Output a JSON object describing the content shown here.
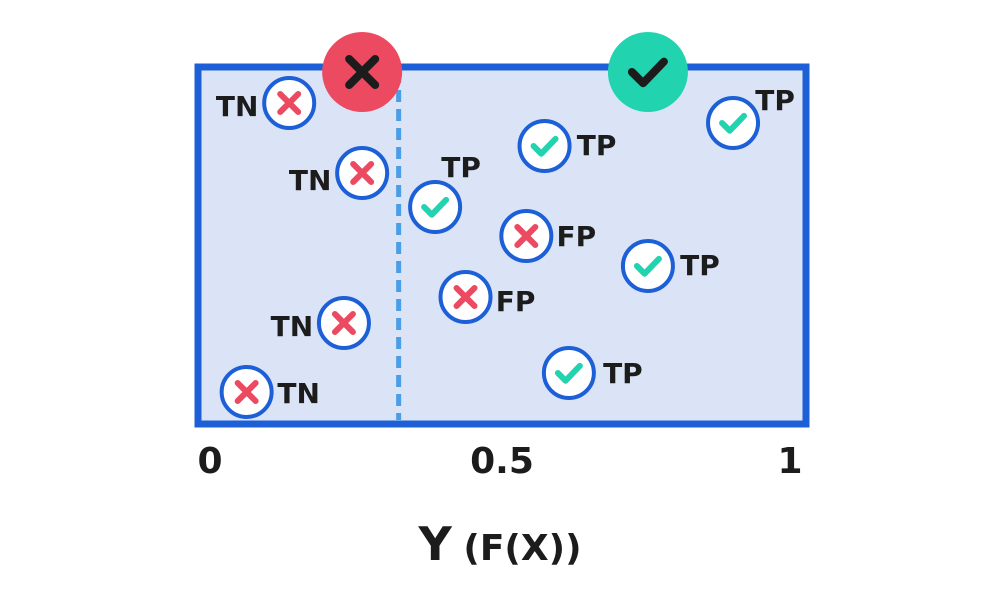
{
  "chart_data": {
    "type": "scatter",
    "threshold": 0.33,
    "xlim": [
      0,
      1
    ],
    "xlabel": "Y (F(X))",
    "xlabel_main": "Y",
    "xlabel_inner": "(F(X))",
    "ticks": [
      {
        "value": 0,
        "label": "0"
      },
      {
        "value": 0.5,
        "label": "0.5"
      },
      {
        "value": 1,
        "label": "1"
      }
    ],
    "colors": {
      "frame": "#1c5fd6",
      "panel": "#dbe4f7",
      "threshold_line": "#4a9ee6",
      "positive": "#22d3b0",
      "negative": "#ec4a61",
      "mark_bg": "#ffffff",
      "text": "#1c1c1c"
    },
    "header_icons": [
      {
        "kind": "cross",
        "icon": "x-icon",
        "x": 0.27
      },
      {
        "kind": "check",
        "icon": "check-icon",
        "x": 0.74
      }
    ],
    "points": [
      {
        "x": 0.15,
        "label": "TN",
        "pred": "cross"
      },
      {
        "x": 0.27,
        "label": "TN",
        "pred": "cross"
      },
      {
        "x": 0.24,
        "label": "TN",
        "pred": "cross"
      },
      {
        "x": 0.08,
        "label": "TN",
        "pred": "cross"
      },
      {
        "x": 0.39,
        "label": "TP",
        "pred": "check"
      },
      {
        "x": 0.57,
        "label": "TP",
        "pred": "check"
      },
      {
        "x": 0.88,
        "label": "TP",
        "pred": "check"
      },
      {
        "x": 0.74,
        "label": "TP",
        "pred": "check"
      },
      {
        "x": 0.61,
        "label": "TP",
        "pred": "check"
      },
      {
        "x": 0.54,
        "label": "FP",
        "pred": "cross"
      },
      {
        "x": 0.44,
        "label": "FP",
        "pred": "cross"
      }
    ]
  }
}
